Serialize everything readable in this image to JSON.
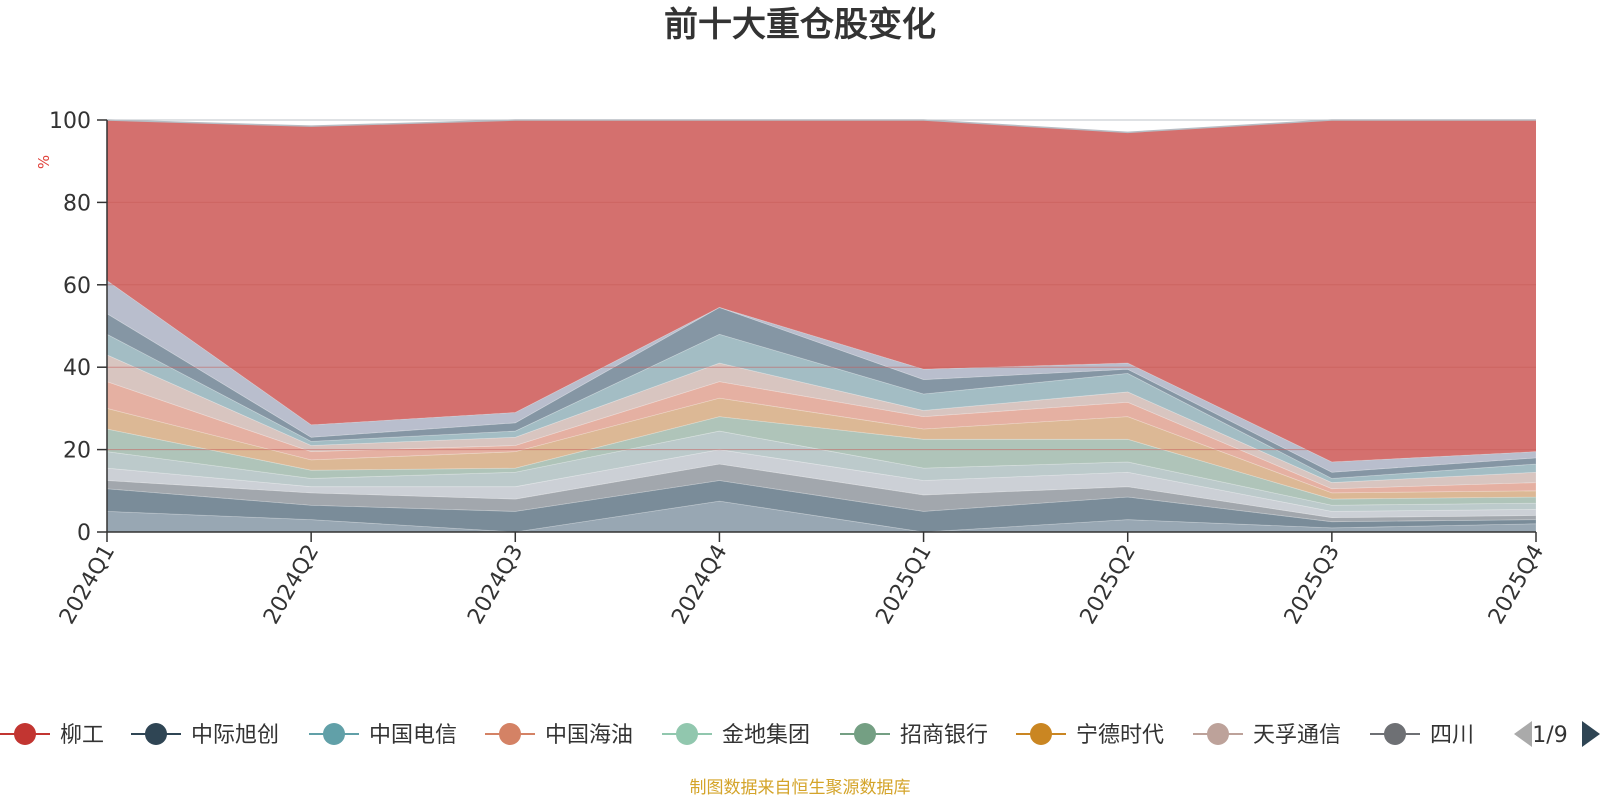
{
  "page": {
    "title": "前十大重仓股变化",
    "source_note": "制图数据来自恒生聚源数据库"
  },
  "colors": {
    "top_band": "#d4706e",
    "grid": "#c75b59",
    "axis": "#333333",
    "ylabel": "#e0413a",
    "pager_disabled": "#aaaaaa",
    "pager_active": "#2f4554",
    "stack_palette": [
      "#8fa0ad",
      "#6f8290",
      "#9aa0a6",
      "#c8ccd2",
      "#b6c6c7",
      "#a8bfb3",
      "#d9b28c",
      "#e3a99a",
      "#d5c0bb",
      "#9bb7bf",
      "#7b8d9c",
      "#b3b8c9",
      "#a3c7b8",
      "#9e9e9e",
      "#d8b36a",
      "#dcdfe5",
      "#aab7a1",
      "#c6b1b1"
    ]
  },
  "legend": {
    "items": [
      {
        "label": "柳工",
        "color": "#c23531"
      },
      {
        "label": "中际旭创",
        "color": "#2f4554"
      },
      {
        "label": "中国电信",
        "color": "#61a0a8"
      },
      {
        "label": "中国海油",
        "color": "#d48265"
      },
      {
        "label": "金地集团",
        "color": "#91c7ae"
      },
      {
        "label": "招商银行",
        "color": "#749f83"
      },
      {
        "label": "宁德时代",
        "color": "#ca8622"
      },
      {
        "label": "天孚通信",
        "color": "#bda29a"
      },
      {
        "label": "四川",
        "color": "#6e7074"
      }
    ],
    "page_indicator": "1/9"
  },
  "chart_data": {
    "type": "area",
    "title": "前十大重仓股变化",
    "ylabel": "%",
    "ylim": [
      0,
      100
    ],
    "y_ticks": [
      "0",
      "20",
      "40",
      "60",
      "80",
      "100"
    ],
    "categories": [
      "2024Q1",
      "2024Q2",
      "2024Q3",
      "2024Q4",
      "2025Q1",
      "2025Q2",
      "2025Q3",
      "2025Q4"
    ],
    "background_series": {
      "boundaries": [
        [
          0,
          0,
          0,
          0,
          0,
          0,
          0,
          0
        ],
        [
          5,
          3,
          0,
          7.5,
          0,
          3,
          1,
          2
        ],
        [
          10.5,
          6.5,
          5,
          12.5,
          5,
          8.5,
          2.5,
          3
        ],
        [
          12.5,
          9.5,
          8,
          16.5,
          9,
          11,
          3.5,
          4
        ],
        [
          15.5,
          11,
          11,
          20,
          12.5,
          14.5,
          5,
          5.5
        ],
        [
          19.5,
          13,
          14.5,
          24.5,
          15.5,
          17,
          6.5,
          7
        ],
        [
          25,
          15,
          15.5,
          28,
          22.5,
          22.5,
          8,
          8.5
        ],
        [
          30,
          17.5,
          19.5,
          32.5,
          25,
          28,
          9.5,
          10
        ],
        [
          36.5,
          19.5,
          21,
          36.5,
          28,
          31.5,
          10.5,
          12
        ],
        [
          43,
          21,
          23,
          41,
          29.5,
          34,
          12,
          14.5
        ],
        [
          48,
          22,
          24.5,
          48,
          33.5,
          38.5,
          13,
          16.5
        ],
        [
          53,
          23,
          26.5,
          54.5,
          37,
          39.5,
          14.5,
          18
        ],
        [
          61,
          26,
          29,
          54.5,
          39.5,
          41,
          17,
          19.5
        ]
      ],
      "top_band_upper": [
        100,
        98.5,
        100,
        100,
        100,
        97,
        100,
        100
      ]
    },
    "highlight_series": [
      {
        "name": "柳工",
        "values": [
          39,
          72.5,
          71,
          45.5,
          60.5,
          56,
          79,
          79
        ]
      }
    ]
  }
}
